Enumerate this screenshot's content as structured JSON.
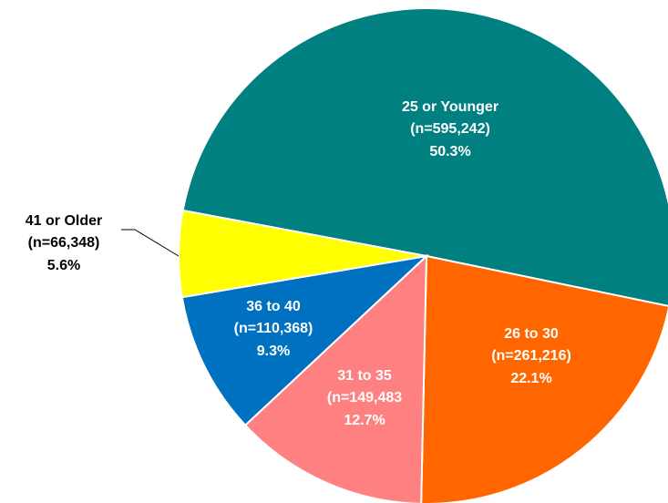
{
  "chart_data": {
    "type": "pie",
    "categories": [
      "25 or Younger",
      "26 to 30",
      "31 to 35",
      "36 to 40",
      "41 or Older"
    ],
    "count_labels": [
      "(n=595,242)",
      "(n=261,216)",
      "(n=149,483",
      "(n=110,368)",
      "(n=66,348)"
    ],
    "values": [
      50.3,
      22.1,
      12.7,
      9.3,
      5.6
    ],
    "value_labels": [
      "50.3%",
      "22.1%",
      "12.7%",
      "9.3%",
      "5.6%"
    ],
    "colors": [
      "#008080",
      "#ff6600",
      "#ff8080",
      "#0070c0",
      "#ffff00"
    ]
  }
}
